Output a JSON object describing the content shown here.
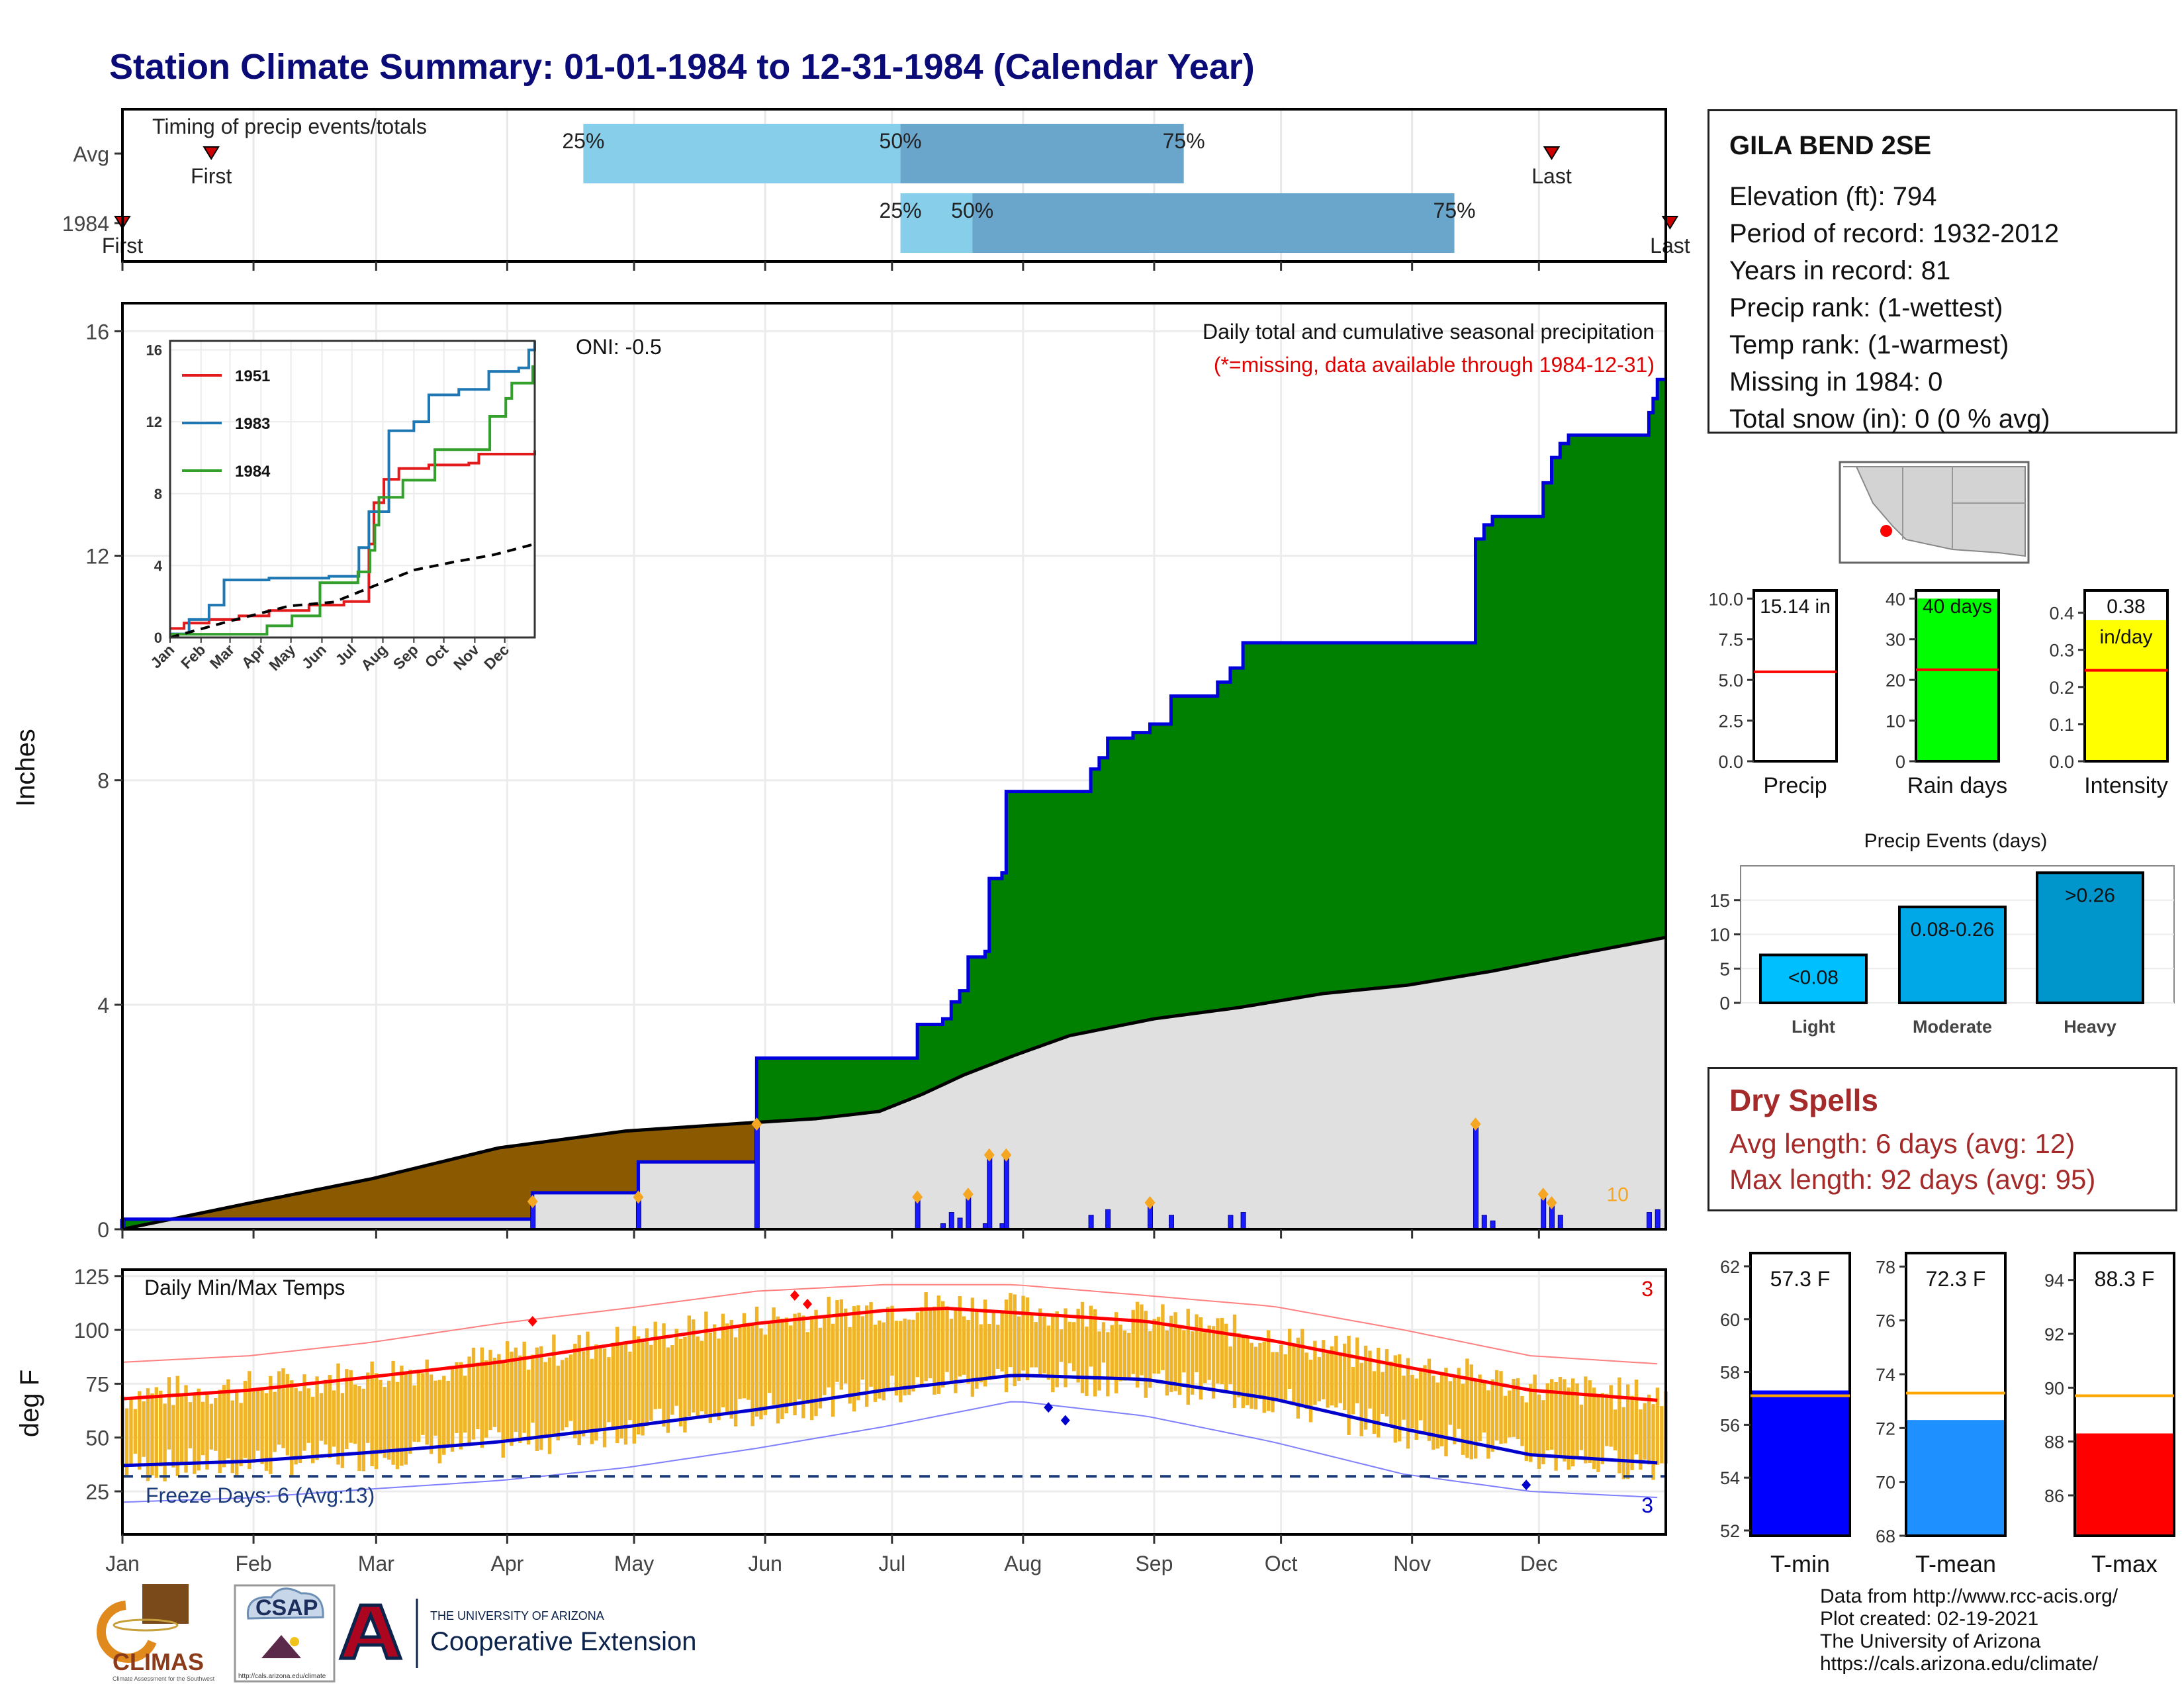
{
  "title": "Station Climate Summary: 01-01-1984 to 12-31-1984 (Calendar Year)",
  "station": {
    "name": "GILA BEND 2SE",
    "lines": [
      "Elevation (ft): 794",
      "Period of record: 1932-2012",
      "Years in record: 81",
      "Precip rank:  (1-wettest)",
      "Temp rank:  (1-warmest)",
      "Missing in 1984: 0",
      "Total snow (in): 0 (0 % avg)"
    ]
  },
  "dry_spells": {
    "title": "Dry Spells",
    "lines": [
      "Avg length: 6 days (avg: 12)",
      "Max length: 92 days (avg: 95)"
    ]
  },
  "credits": [
    "Data from http://www.rcc-acis.org/",
    "Plot created: 02-19-2021",
    "The University of Arizona",
    "https://cals.arizona.edu/climate/"
  ],
  "logos": {
    "climas": "CLIMAS",
    "climas_sub": "Climate Assessment for the Southwest",
    "csap": "CSAP",
    "csap_url": "http://cals.arizona.edu/climate",
    "ua_line1": "THE UNIVERSITY OF ARIZONA",
    "ua_line2": "Cooperative Extension"
  },
  "colors": {
    "title": "#0b0b78",
    "green": "#008000",
    "brown": "#8b5a00",
    "grey_fill": "#e0e0e0",
    "blue_line": "#0000dd",
    "orange": "#f5a623",
    "tmax": "#ff0000",
    "tmin": "#0000cc",
    "bars": "#f0b429",
    "dry": "#a52a2a"
  },
  "chart_data": [
    {
      "type": "bar",
      "id": "timing",
      "title": "Timing of precip events/totals",
      "rows": [
        {
          "label": "Avg",
          "first_doy": 22,
          "last_doy": 339,
          "p25": 110,
          "p50": 185,
          "p75": 252,
          "bar_start": 110,
          "bar_end": 252
        },
        {
          "label": "1984",
          "first_doy": 1,
          "last_doy": 367,
          "p25": 185,
          "p50": 202,
          "p75": 316,
          "bar_start": 185,
          "bar_end": 316
        }
      ],
      "labels": {
        "first": "First",
        "last": "Last",
        "p25": "25%",
        "p50": "50%",
        "p75": "75%"
      }
    },
    {
      "type": "area",
      "id": "cumulative",
      "ylabel": "Inches",
      "ylim": [
        0,
        16.5
      ],
      "yticks": [
        0,
        4,
        8,
        12,
        16
      ],
      "months": [
        "Jan",
        "Feb",
        "Mar",
        "Apr",
        "May",
        "Jun",
        "Jul",
        "Aug",
        "Sep",
        "Oct",
        "Nov",
        "Dec"
      ],
      "annotation": "ONI: -0.5",
      "legend_title": "Daily total and cumulative seasonal precipitation",
      "legend_sub": "(*=missing, data available through 1984-12-31)",
      "max_day_label": "10",
      "cum_1984": [
        [
          1,
          0.18
        ],
        [
          97,
          0.18
        ],
        [
          98,
          0.65
        ],
        [
          122,
          0.65
        ],
        [
          123,
          1.2
        ],
        [
          150,
          1.2
        ],
        [
          151,
          3.05
        ],
        [
          188,
          3.05
        ],
        [
          189,
          3.65
        ],
        [
          195,
          3.75
        ],
        [
          197,
          4.05
        ],
        [
          199,
          4.25
        ],
        [
          201,
          4.85
        ],
        [
          205,
          4.95
        ],
        [
          206,
          6.25
        ],
        [
          209,
          6.35
        ],
        [
          210,
          7.8
        ],
        [
          229,
          7.8
        ],
        [
          230,
          8.2
        ],
        [
          232,
          8.4
        ],
        [
          234,
          8.75
        ],
        [
          240,
          8.85
        ],
        [
          244,
          9.0
        ],
        [
          249,
          9.5
        ],
        [
          260,
          9.75
        ],
        [
          263,
          10.0
        ],
        [
          266,
          10.45
        ],
        [
          320,
          10.45
        ],
        [
          321,
          12.3
        ],
        [
          323,
          12.55
        ],
        [
          325,
          12.7
        ],
        [
          336,
          12.7
        ],
        [
          337,
          13.3
        ],
        [
          339,
          13.75
        ],
        [
          341,
          14.0
        ],
        [
          343,
          14.15
        ],
        [
          360,
          14.15
        ],
        [
          362,
          14.55
        ],
        [
          363,
          14.8
        ],
        [
          364,
          15.14
        ],
        [
          366,
          15.14
        ]
      ],
      "cum_avg": [
        [
          1,
          0.0
        ],
        [
          30,
          0.45
        ],
        [
          60,
          0.9
        ],
        [
          90,
          1.45
        ],
        [
          120,
          1.75
        ],
        [
          150,
          1.9
        ],
        [
          165,
          1.97
        ],
        [
          180,
          2.1
        ],
        [
          190,
          2.4
        ],
        [
          200,
          2.75
        ],
        [
          212,
          3.1
        ],
        [
          225,
          3.45
        ],
        [
          245,
          3.75
        ],
        [
          265,
          3.95
        ],
        [
          285,
          4.2
        ],
        [
          305,
          4.35
        ],
        [
          325,
          4.6
        ],
        [
          345,
          4.9
        ],
        [
          366,
          5.2
        ]
      ],
      "daily_events": [
        [
          1,
          0.18
        ],
        [
          98,
          0.47
        ],
        [
          123,
          0.55
        ],
        [
          151,
          1.85
        ],
        [
          189,
          0.55
        ],
        [
          195,
          0.1
        ],
        [
          197,
          0.3
        ],
        [
          199,
          0.2
        ],
        [
          201,
          0.6
        ],
        [
          205,
          0.1
        ],
        [
          206,
          1.3
        ],
        [
          209,
          0.1
        ],
        [
          210,
          1.3
        ],
        [
          230,
          0.25
        ],
        [
          234,
          0.35
        ],
        [
          244,
          0.45
        ],
        [
          249,
          0.25
        ],
        [
          263,
          0.25
        ],
        [
          266,
          0.3
        ],
        [
          321,
          1.85
        ],
        [
          323,
          0.25
        ],
        [
          325,
          0.15
        ],
        [
          337,
          0.6
        ],
        [
          339,
          0.45
        ],
        [
          341,
          0.25
        ],
        [
          362,
          0.3
        ],
        [
          364,
          0.35
        ]
      ]
    },
    {
      "type": "line",
      "id": "inset",
      "yticks": [
        0,
        4,
        8,
        12,
        16
      ],
      "months": [
        "Jan",
        "Feb",
        "Mar",
        "Apr",
        "May",
        "Jun",
        "Jul",
        "Aug",
        "Sep",
        "Oct",
        "Nov",
        "Dec"
      ],
      "series": [
        {
          "name": "1951",
          "color": "#e31a1c",
          "values": [
            [
              1,
              0.5
            ],
            [
              15,
              0.8
            ],
            [
              40,
              1.0
            ],
            [
              70,
              1.2
            ],
            [
              100,
              1.5
            ],
            [
              140,
              1.8
            ],
            [
              175,
              2.0
            ],
            [
              200,
              5.2
            ],
            [
              205,
              7.5
            ],
            [
              215,
              8.8
            ],
            [
              230,
              9.4
            ],
            [
              260,
              9.6
            ],
            [
              300,
              9.7
            ],
            [
              310,
              10.2
            ],
            [
              366,
              10.4
            ]
          ]
        },
        {
          "name": "1983",
          "color": "#1f78b4",
          "values": [
            [
              1,
              0.2
            ],
            [
              20,
              1.0
            ],
            [
              40,
              1.8
            ],
            [
              55,
              3.2
            ],
            [
              100,
              3.3
            ],
            [
              160,
              3.4
            ],
            [
              190,
              5.0
            ],
            [
              200,
              7.0
            ],
            [
              220,
              11.5
            ],
            [
              245,
              12.0
            ],
            [
              260,
              13.5
            ],
            [
              290,
              13.8
            ],
            [
              320,
              14.8
            ],
            [
              350,
              15.0
            ],
            [
              360,
              16.0
            ],
            [
              366,
              16.5
            ]
          ]
        },
        {
          "name": "1984",
          "color": "#33a02c",
          "values": [
            [
              1,
              0.18
            ],
            [
              97,
              0.18
            ],
            [
              98,
              0.65
            ],
            [
              122,
              0.65
            ],
            [
              123,
              1.2
            ],
            [
              150,
              1.2
            ],
            [
              151,
              3.05
            ],
            [
              188,
              3.05
            ],
            [
              189,
              3.65
            ],
            [
              201,
              4.85
            ],
            [
              206,
              6.25
            ],
            [
              210,
              7.8
            ],
            [
              229,
              7.8
            ],
            [
              234,
              8.75
            ],
            [
              266,
              10.45
            ],
            [
              320,
              10.45
            ],
            [
              321,
              12.3
            ],
            [
              337,
              13.3
            ],
            [
              343,
              14.15
            ],
            [
              360,
              14.15
            ],
            [
              364,
              15.14
            ]
          ]
        },
        {
          "name": "",
          "color": "#000000",
          "dashed": true,
          "values": [
            [
              1,
              0.0
            ],
            [
              60,
              0.9
            ],
            [
              120,
              1.75
            ],
            [
              165,
              1.97
            ],
            [
              200,
              2.75
            ],
            [
              245,
              3.75
            ],
            [
              285,
              4.2
            ],
            [
              325,
              4.6
            ],
            [
              366,
              5.2
            ]
          ]
        }
      ]
    },
    {
      "type": "line",
      "id": "temps",
      "title": "Daily Min/Max Temps",
      "ylabel": "deg F",
      "ylim": [
        5,
        128
      ],
      "yticks": [
        25,
        50,
        75,
        100,
        125
      ],
      "months": [
        "Jan",
        "Feb",
        "Mar",
        "Apr",
        "May",
        "Jun",
        "Jul",
        "Aug",
        "Sep",
        "Oct",
        "Nov",
        "Dec"
      ],
      "freeze_label": "Freeze Days: 6 (Avg:13)",
      "freeze_line": 32,
      "max_record_label": "3",
      "min_record_label": "3",
      "avg_max": [
        [
          1,
          68
        ],
        [
          31,
          72
        ],
        [
          59,
          78
        ],
        [
          90,
          85
        ],
        [
          120,
          94
        ],
        [
          151,
          103
        ],
        [
          181,
          109
        ],
        [
          196,
          110
        ],
        [
          212,
          108
        ],
        [
          243,
          104
        ],
        [
          273,
          95
        ],
        [
          304,
          83
        ],
        [
          334,
          72
        ],
        [
          366,
          67
        ]
      ],
      "avg_min": [
        [
          1,
          37
        ],
        [
          31,
          39
        ],
        [
          59,
          43
        ],
        [
          90,
          48
        ],
        [
          120,
          55
        ],
        [
          151,
          63
        ],
        [
          181,
          72
        ],
        [
          212,
          79
        ],
        [
          243,
          77
        ],
        [
          273,
          68
        ],
        [
          304,
          54
        ],
        [
          334,
          42
        ],
        [
          366,
          38
        ]
      ],
      "rec_max": [
        [
          1,
          85
        ],
        [
          31,
          88
        ],
        [
          59,
          94
        ],
        [
          90,
          103
        ],
        [
          120,
          110
        ],
        [
          151,
          118
        ],
        [
          181,
          121
        ],
        [
          212,
          121
        ],
        [
          243,
          116
        ],
        [
          273,
          111
        ],
        [
          304,
          100
        ],
        [
          334,
          88
        ],
        [
          366,
          84
        ]
      ],
      "rec_min": [
        [
          1,
          20
        ],
        [
          31,
          22
        ],
        [
          59,
          26
        ],
        [
          90,
          30
        ],
        [
          120,
          36
        ],
        [
          151,
          45
        ],
        [
          181,
          55
        ],
        [
          212,
          67
        ],
        [
          243,
          60
        ],
        [
          273,
          48
        ],
        [
          304,
          33
        ],
        [
          334,
          25
        ],
        [
          366,
          22
        ]
      ]
    },
    {
      "type": "bar",
      "id": "precip-gauges",
      "panels": [
        {
          "label": "Precip",
          "value": 15.14,
          "value_text": "15.14 in",
          "unit_text": "",
          "avg": 5.5,
          "ymax": 10.5,
          "yticks": [
            0.0,
            2.5,
            5.0,
            7.5,
            10.0
          ],
          "fill": "#ffffff"
        },
        {
          "label": "Rain days",
          "value": 40,
          "value_text": "40 days",
          "unit_text": "",
          "avg": 22.5,
          "ymax": 42,
          "yticks": [
            0,
            10,
            20,
            30,
            40
          ],
          "fill": "#00ff00"
        },
        {
          "label": "Intensity",
          "value": 0.38,
          "value_text": "0.38",
          "unit_text": "in/day",
          "avg": 0.245,
          "ymax": 0.46,
          "yticks": [
            0.0,
            0.1,
            0.2,
            0.3,
            0.4
          ],
          "fill": "#ffff00"
        }
      ]
    },
    {
      "type": "bar",
      "id": "events",
      "title": "Precip Events (days)",
      "categories": [
        "Light",
        "Moderate",
        "Heavy"
      ],
      "bin_labels": [
        "<0.08",
        "0.08-0.26",
        ">0.26"
      ],
      "values": [
        7,
        14,
        19
      ],
      "colors": [
        "#00bfff",
        "#00a8e8",
        "#0096cc"
      ],
      "ylim": [
        0,
        20
      ],
      "yticks": [
        0,
        5,
        10,
        15
      ]
    },
    {
      "type": "bar",
      "id": "temp-gauges",
      "panels": [
        {
          "label": "T-min",
          "value": 57.3,
          "value_text": "57.3 F",
          "avg": 57.1,
          "ymin": 51.8,
          "ymax": 62.5,
          "yticks": [
            52,
            54,
            56,
            58,
            60,
            62
          ],
          "fill": "#0000ff"
        },
        {
          "label": "T-mean",
          "value": 72.3,
          "value_text": "72.3 F",
          "avg": 73.3,
          "ymin": 68.0,
          "ymax": 78.5,
          "yticks": [
            68,
            70,
            72,
            74,
            76,
            78
          ],
          "fill": "#1e90ff"
        },
        {
          "label": "T-max",
          "value": 88.3,
          "value_text": "88.3 F",
          "avg": 89.7,
          "ymin": 84.5,
          "ymax": 95.0,
          "yticks": [
            86,
            88,
            90,
            92,
            94
          ],
          "fill": "#ff0000"
        }
      ]
    }
  ]
}
